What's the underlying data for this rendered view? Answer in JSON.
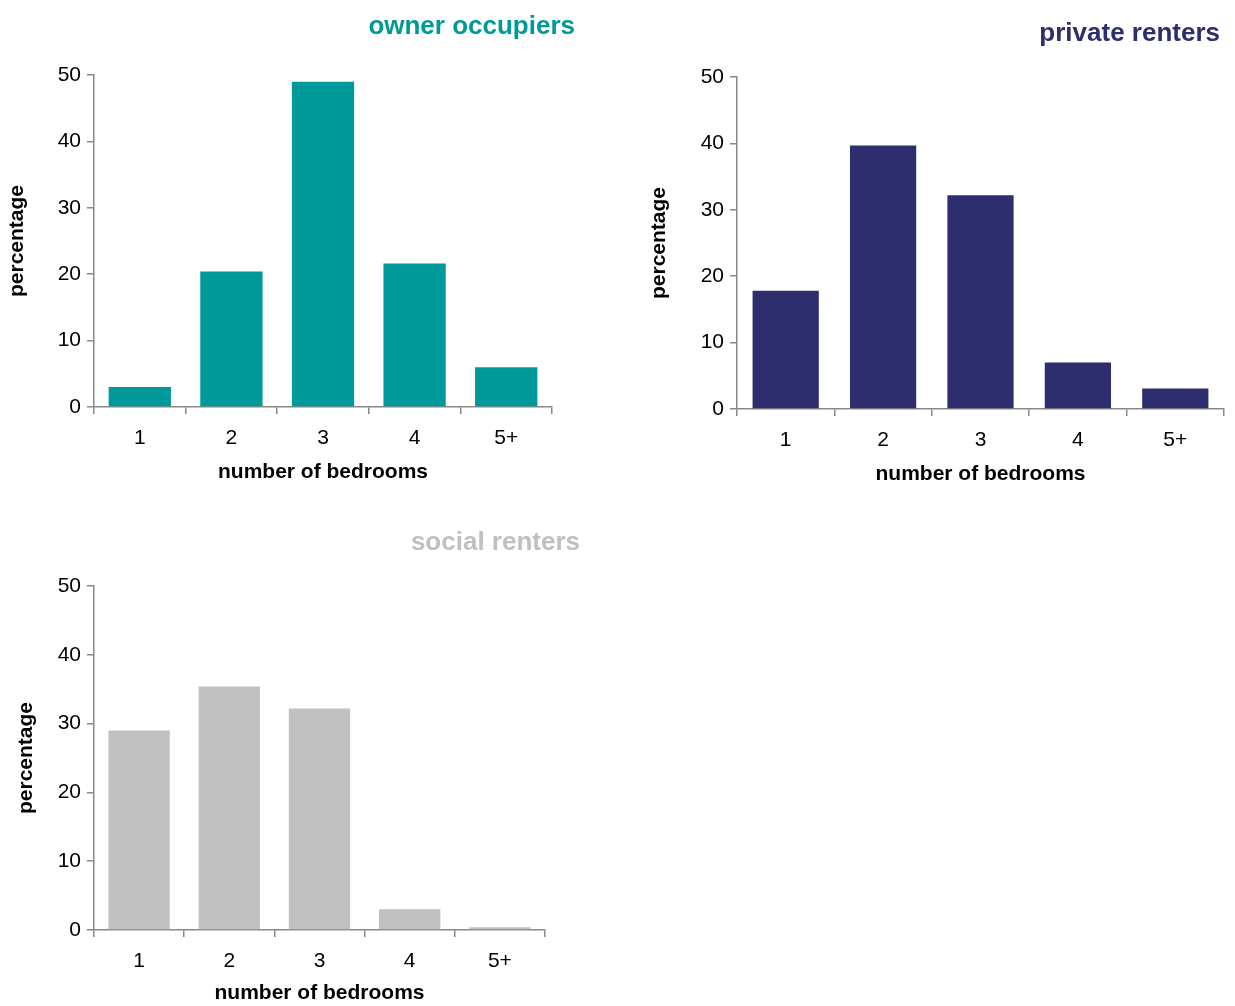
{
  "chart_data": [
    {
      "type": "bar",
      "title": "owner occupiers",
      "xlabel": "number of bedrooms",
      "ylabel": "percentage",
      "categories": [
        "1",
        "2",
        "3",
        "4",
        "5+"
      ],
      "values": [
        3.0,
        20.4,
        49.0,
        21.6,
        6.0
      ],
      "color": "#009999",
      "ylim": [
        0,
        50
      ],
      "yticks": [
        0,
        10,
        20,
        30,
        40,
        50
      ]
    },
    {
      "type": "bar",
      "title": "private renters",
      "xlabel": "number of bedrooms",
      "ylabel": "percentage",
      "categories": [
        "1",
        "2",
        "3",
        "4",
        "5+"
      ],
      "values": [
        17.8,
        39.7,
        32.2,
        7.0,
        3.1
      ],
      "color": "#2e2d6e",
      "ylim": [
        0,
        50
      ],
      "yticks": [
        0,
        10,
        20,
        30,
        40,
        50
      ]
    },
    {
      "type": "bar",
      "title": "social renters",
      "xlabel": "number of bedrooms",
      "ylabel": "percentage",
      "categories": [
        "1",
        "2",
        "3",
        "4",
        "5+"
      ],
      "values": [
        29.0,
        35.4,
        32.2,
        3.0,
        0.4
      ],
      "color": "#c0c0c0",
      "ylim": [
        0,
        50
      ],
      "yticks": [
        0,
        10,
        20,
        30,
        40,
        50
      ]
    }
  ]
}
